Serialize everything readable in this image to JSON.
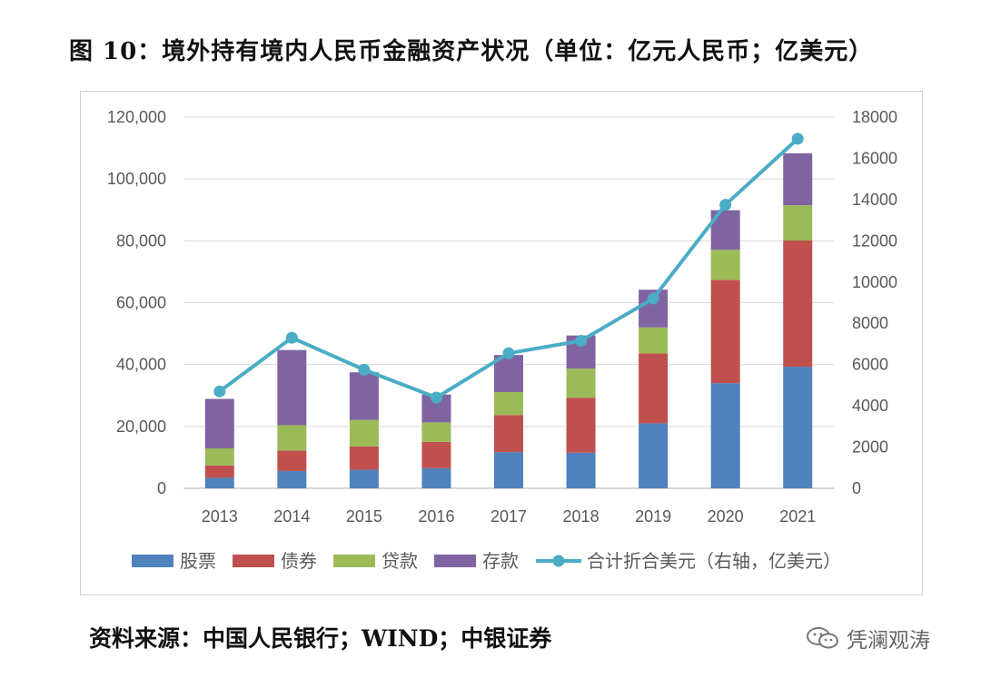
{
  "title": "图 10：境外持有境内人民币金融资产状况（单位：亿元人民币；亿美元）",
  "source": "资料来源：中国人民银行；WIND；中银证券",
  "watermark": "凭澜观涛",
  "chart_data": {
    "type": "bar",
    "stacked": true,
    "categories": [
      "2013",
      "2014",
      "2015",
      "2016",
      "2017",
      "2018",
      "2019",
      "2020",
      "2021"
    ],
    "series": [
      {
        "name": "股票",
        "color": "#4f81bd",
        "axis": "left",
        "values": [
          3400,
          5600,
          6000,
          6500,
          11700,
          11500,
          21000,
          34000,
          39300
        ]
      },
      {
        "name": "债券",
        "color": "#c0504d",
        "axis": "left",
        "values": [
          4000,
          6600,
          7500,
          8500,
          12000,
          17800,
          22600,
          33400,
          40800
        ]
      },
      {
        "name": "贷款",
        "color": "#9bbb59",
        "axis": "left",
        "values": [
          5500,
          8200,
          8600,
          6300,
          7400,
          9400,
          8400,
          9700,
          11400
        ]
      },
      {
        "name": "存款",
        "color": "#8064a2",
        "axis": "left",
        "values": [
          16000,
          24300,
          15400,
          9000,
          12000,
          10700,
          12200,
          12800,
          16800
        ]
      },
      {
        "name": "合计折合美元（右轴，亿美元）",
        "color": "#4bacc6",
        "axis": "right",
        "type": "line",
        "values": [
          4700,
          7300,
          5750,
          4400,
          6550,
          7150,
          9200,
          13750,
          16950
        ]
      }
    ],
    "yticks_left": [
      "0",
      "20,000",
      "40,000",
      "60,000",
      "80,000",
      "100,000",
      "120,000"
    ],
    "yticks_right": [
      "0",
      "2000",
      "4000",
      "6000",
      "8000",
      "10000",
      "12000",
      "14000",
      "16000",
      "18000"
    ],
    "ylim_left": [
      0,
      120000
    ],
    "ylim_right": [
      0,
      18000
    ],
    "grid": true,
    "legend_position": "bottom"
  }
}
